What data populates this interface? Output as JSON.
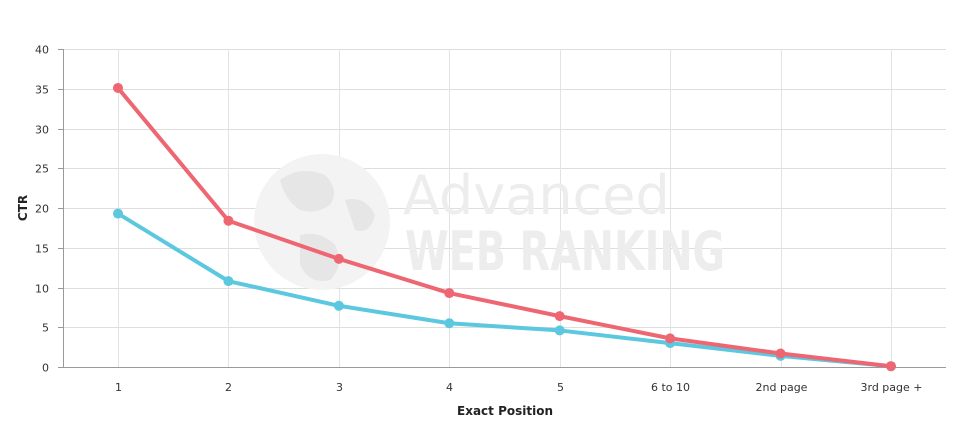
{
  "chart_data": {
    "type": "line",
    "title": "",
    "xlabel": "Exact Position",
    "ylabel": "CTR",
    "categories": [
      "1",
      "2",
      "3",
      "4",
      "5",
      "6 to 10",
      "2nd page",
      "3rd page +"
    ],
    "ylim": [
      0,
      40
    ],
    "yticks": [
      0,
      5,
      10,
      15,
      20,
      25,
      30,
      35,
      40
    ],
    "grid": true,
    "series": [
      {
        "color": "#ee6672",
        "values": [
          35.1,
          18.4,
          13.6,
          9.3,
          6.4,
          3.6,
          1.7,
          0.1
        ]
      },
      {
        "color": "#5bc8df",
        "values": [
          19.3,
          10.8,
          7.7,
          5.5,
          4.6,
          3.0,
          1.4,
          0.1
        ]
      }
    ]
  },
  "watermark": {
    "line1": "Advanced",
    "line2": "WEB RANKING",
    "icon": "globe-icon"
  }
}
